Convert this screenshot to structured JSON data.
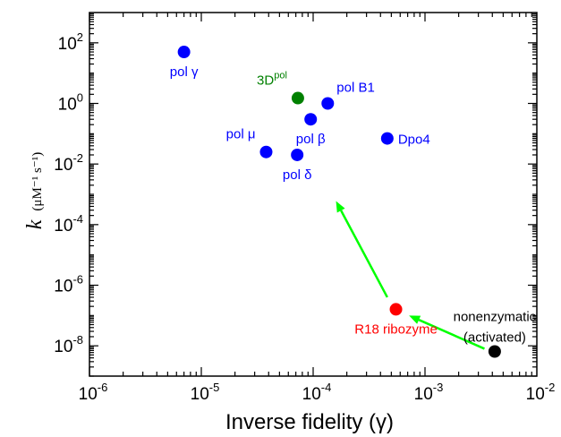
{
  "chart_data": {
    "type": "scatter",
    "title": "",
    "xlabel": "Inverse fidelity (γ)",
    "ylabel": {
      "main": "k",
      "units": "(μM⁻¹ s⁻¹)"
    },
    "xscale": "log",
    "yscale": "log",
    "xlim": [
      1e-06,
      0.01
    ],
    "ylim": [
      1e-09,
      1000.0
    ],
    "grid": false,
    "x_ticks": [
      {
        "value": 1e-06,
        "base": "10",
        "exp": "-6"
      },
      {
        "value": 1e-05,
        "base": "10",
        "exp": "-5"
      },
      {
        "value": 0.0001,
        "base": "10",
        "exp": "-4"
      },
      {
        "value": 0.001,
        "base": "10",
        "exp": "-3"
      },
      {
        "value": 0.01,
        "base": "10",
        "exp": "-2"
      }
    ],
    "y_ticks": [
      {
        "value": 1e-08,
        "base": "10",
        "exp": "-8"
      },
      {
        "value": 1e-06,
        "base": "10",
        "exp": "-6"
      },
      {
        "value": 0.0001,
        "base": "10",
        "exp": "-4"
      },
      {
        "value": 0.01,
        "base": "10",
        "exp": "-2"
      },
      {
        "value": 1.0,
        "base": "10",
        "exp": "0"
      },
      {
        "value": 100.0,
        "base": "10",
        "exp": "2"
      }
    ],
    "points": [
      {
        "label": "pol γ",
        "x": 7e-06,
        "y": 50,
        "color": "#0000ff",
        "label_pos": "below"
      },
      {
        "label": "3D",
        "label_sup": "pol",
        "x": 7.3e-05,
        "y": 1.5,
        "color": "#008000",
        "label_pos": "above-left"
      },
      {
        "label": "pol B1",
        "x": 0.000135,
        "y": 1.0,
        "color": "#0000ff",
        "label_pos": "above-right"
      },
      {
        "label": "pol β",
        "x": 9.5e-05,
        "y": 0.3,
        "color": "#0000ff",
        "label_pos": "below"
      },
      {
        "label": "pol μ",
        "x": 3.8e-05,
        "y": 0.025,
        "color": "#0000ff",
        "label_pos": "above-left"
      },
      {
        "label": "pol δ",
        "x": 7.2e-05,
        "y": 0.02,
        "color": "#0000ff",
        "label_pos": "below"
      },
      {
        "label": "Dpo4",
        "x": 0.00046,
        "y": 0.07,
        "color": "#0000ff",
        "label_pos": "right"
      },
      {
        "label": "R18 ribozyme",
        "x": 0.00055,
        "y": 1.6e-07,
        "color": "#ff0000",
        "label_pos": "below"
      },
      {
        "label": "nonenzymatic",
        "label2": "(activated)",
        "x": 0.0042,
        "y": 6.5e-09,
        "color": "#000000",
        "label_pos": "above"
      }
    ],
    "arrows": [
      {
        "from": {
          "x": 0.0034,
          "y": 8e-09
        },
        "to": {
          "x": 0.00072,
          "y": 1e-07
        },
        "color": "#00ff00"
      },
      {
        "from": {
          "x": 0.00046,
          "y": 4e-07
        },
        "to": {
          "x": 0.00016,
          "y": 0.0006
        },
        "color": "#00ff00"
      }
    ]
  }
}
